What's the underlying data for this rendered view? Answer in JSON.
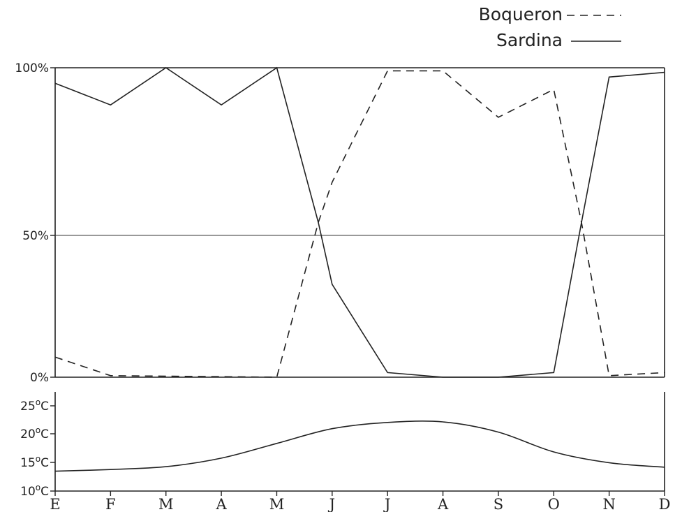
{
  "chart_data": [
    {
      "type": "line",
      "categories": [
        "E",
        "F",
        "M",
        "A",
        "M",
        "J",
        "J",
        "A",
        "S",
        "O",
        "N",
        "D"
      ],
      "y_tick_labels": [
        "0%",
        "50%",
        "100%"
      ],
      "ylim": [
        0,
        100
      ],
      "grid": "horizontal line at 50%",
      "legend": "top-right",
      "series": [
        {
          "name": "Sardina",
          "style": "solid",
          "x": [
            0,
            1,
            2,
            3,
            4,
            4.75,
            5,
            6,
            7,
            8,
            9,
            9.5,
            10,
            11
          ],
          "values": [
            95,
            88,
            100,
            88,
            100,
            50,
            30,
            1.5,
            0,
            0,
            1.5,
            50,
            97,
            98.5
          ]
        },
        {
          "name": "Boquerón",
          "style": "dashed",
          "x": [
            0,
            1,
            4,
            4.75,
            5,
            6,
            7,
            8,
            9,
            9.5,
            10,
            11
          ],
          "values": [
            6.5,
            0.5,
            0,
            50,
            63,
            99,
            99,
            84,
            93,
            50,
            0.5,
            1.5
          ]
        }
      ]
    },
    {
      "type": "line",
      "categories": [
        "E",
        "F",
        "M",
        "A",
        "M",
        "J",
        "J",
        "A",
        "S",
        "O",
        "N",
        "D"
      ],
      "y_tick_labels": [
        "10°C",
        "15°C",
        "20°C",
        "25°C"
      ],
      "ylim": [
        10,
        27.5
      ],
      "series": [
        {
          "values": [
            13.5,
            13.8,
            14.3,
            15.8,
            18.4,
            21.0,
            22.1,
            22.2,
            20.4,
            16.9,
            15.0,
            14.2
          ]
        }
      ]
    }
  ],
  "legend": [
    {
      "label": "Boqueron",
      "style": "dashed"
    },
    {
      "label": "Sardina",
      "style": "solid"
    }
  ],
  "top_axis_labels": {
    "p0": "0%",
    "p50": "50%",
    "p100": "100%"
  },
  "temp_axis_labels": {
    "t10": "10",
    "t15": "15",
    "t20": "20",
    "t25": "25",
    "unit": "C",
    "degree": "o"
  },
  "months": [
    "E",
    "F",
    "M",
    "A",
    "M",
    "J",
    "J",
    "A",
    "S",
    "O",
    "N",
    "D"
  ]
}
